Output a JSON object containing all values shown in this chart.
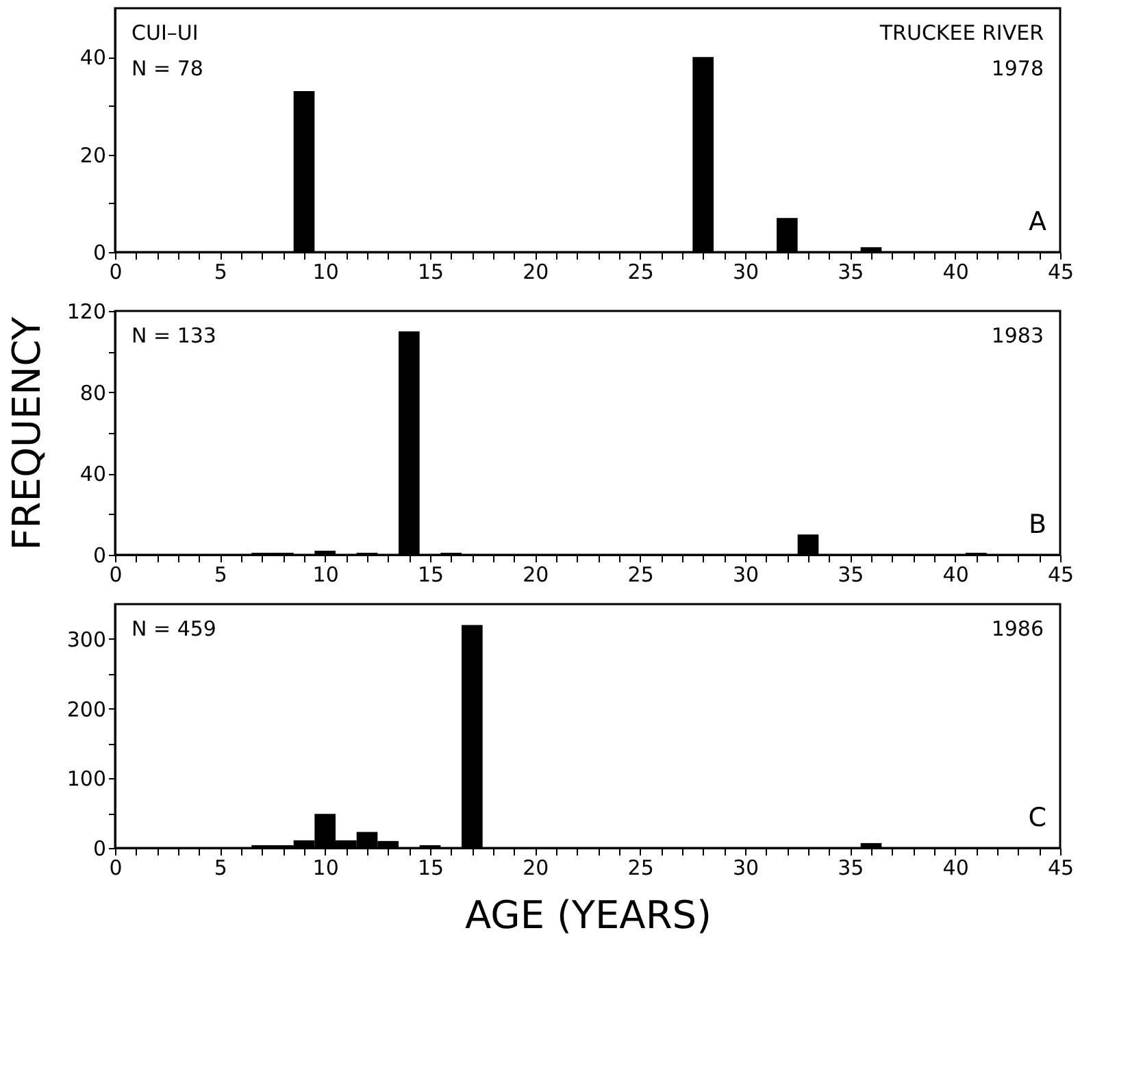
{
  "chart_data": [
    {
      "type": "bar",
      "annotations": [
        "CUI–UI",
        "TRUCKEE RIVER",
        "N = 78",
        "1978",
        "A"
      ],
      "x": [
        9,
        28,
        32,
        36
      ],
      "values": [
        33,
        40,
        7,
        1
      ],
      "color": "#000000",
      "xlim": [
        0,
        45
      ],
      "xticks": [
        0,
        {
          "value": 1,
          "label": null
        },
        {
          "value": 2,
          "label": null
        },
        {
          "value": 3,
          "label": null
        },
        {
          "value": 4,
          "label": null
        },
        5,
        {
          "value": 6,
          "label": null
        },
        {
          "value": 7,
          "label": null
        },
        {
          "value": 8,
          "label": null
        },
        {
          "value": 9,
          "label": null
        },
        10,
        {
          "value": 11,
          "label": null
        },
        {
          "value": 12,
          "label": null
        },
        {
          "value": 13,
          "label": null
        },
        {
          "value": 14,
          "label": null
        },
        15,
        {
          "value": 16,
          "label": null
        },
        {
          "value": 17,
          "label": null
        },
        {
          "value": 18,
          "label": null
        },
        {
          "value": 19,
          "label": null
        },
        20,
        {
          "value": 21,
          "label": null
        },
        {
          "value": 22,
          "label": null
        },
        {
          "value": 23,
          "label": null
        },
        {
          "value": 24,
          "label": null
        },
        25,
        {
          "value": 26,
          "label": null
        },
        {
          "value": 27,
          "label": null
        },
        {
          "value": 28,
          "label": null
        },
        {
          "value": 29,
          "label": null
        },
        30,
        {
          "value": 31,
          "label": null
        },
        {
          "value": 32,
          "label": null
        },
        {
          "value": 33,
          "label": null
        },
        {
          "value": 34,
          "label": null
        },
        35,
        {
          "value": 36,
          "label": null
        },
        {
          "value": 37,
          "label": null
        },
        {
          "value": 38,
          "label": null
        },
        {
          "value": 39,
          "label": null
        },
        40,
        {
          "value": 41,
          "label": null
        },
        {
          "value": 42,
          "label": null
        },
        {
          "value": 43,
          "label": null
        },
        {
          "value": 44,
          "label": null
        },
        45
      ],
      "ylim": [
        0,
        50
      ],
      "yticks": [
        0,
        {
          "value": 10,
          "label": null
        },
        20,
        {
          "value": 30,
          "label": null
        },
        40
      ],
      "grid": false
    },
    {
      "type": "bar",
      "annotations": [
        "N = 133",
        "1983",
        "B"
      ],
      "ylabel": "FREQUENCY",
      "x": [
        7,
        8,
        10,
        12,
        14,
        16,
        33,
        41
      ],
      "values": [
        1,
        1,
        2,
        1,
        110,
        1,
        10,
        1
      ],
      "color": "#000000",
      "xlim": [
        0,
        45
      ],
      "xticks": [
        0,
        {
          "value": 1,
          "label": null
        },
        {
          "value": 2,
          "label": null
        },
        {
          "value": 3,
          "label": null
        },
        {
          "value": 4,
          "label": null
        },
        5,
        {
          "value": 6,
          "label": null
        },
        {
          "value": 7,
          "label": null
        },
        {
          "value": 8,
          "label": null
        },
        {
          "value": 9,
          "label": null
        },
        10,
        {
          "value": 11,
          "label": null
        },
        {
          "value": 12,
          "label": null
        },
        {
          "value": 13,
          "label": null
        },
        {
          "value": 14,
          "label": null
        },
        15,
        {
          "value": 16,
          "label": null
        },
        {
          "value": 17,
          "label": null
        },
        {
          "value": 18,
          "label": null
        },
        {
          "value": 19,
          "label": null
        },
        20,
        {
          "value": 21,
          "label": null
        },
        {
          "value": 22,
          "label": null
        },
        {
          "value": 23,
          "label": null
        },
        {
          "value": 24,
          "label": null
        },
        25,
        {
          "value": 26,
          "label": null
        },
        {
          "value": 27,
          "label": null
        },
        {
          "value": 28,
          "label": null
        },
        {
          "value": 29,
          "label": null
        },
        30,
        {
          "value": 31,
          "label": null
        },
        {
          "value": 32,
          "label": null
        },
        {
          "value": 33,
          "label": null
        },
        {
          "value": 34,
          "label": null
        },
        35,
        {
          "value": 36,
          "label": null
        },
        {
          "value": 37,
          "label": null
        },
        {
          "value": 38,
          "label": null
        },
        {
          "value": 39,
          "label": null
        },
        40,
        {
          "value": 41,
          "label": null
        },
        {
          "value": 42,
          "label": null
        },
        {
          "value": 43,
          "label": null
        },
        {
          "value": 44,
          "label": null
        },
        45
      ],
      "ylim": [
        0,
        120
      ],
      "yticks": [
        0,
        {
          "value": 20,
          "label": null
        },
        40,
        {
          "value": 60,
          "label": null
        },
        80,
        {
          "value": 100,
          "label": null
        },
        120
      ],
      "grid": false
    },
    {
      "type": "bar",
      "annotations": [
        "N = 459",
        "1986",
        "C"
      ],
      "xlabel": "AGE (YEARS)",
      "x": [
        7,
        8,
        9,
        10,
        11,
        12,
        13,
        15,
        17,
        19,
        36
      ],
      "values": [
        4,
        4,
        11,
        49,
        11,
        23,
        10,
        4,
        320,
        1,
        7
      ],
      "color": "#000000",
      "xlim": [
        0,
        45
      ],
      "xticks": [
        0,
        {
          "value": 1,
          "label": null
        },
        {
          "value": 2,
          "label": null
        },
        {
          "value": 3,
          "label": null
        },
        {
          "value": 4,
          "label": null
        },
        5,
        {
          "value": 6,
          "label": null
        },
        {
          "value": 7,
          "label": null
        },
        {
          "value": 8,
          "label": null
        },
        {
          "value": 9,
          "label": null
        },
        10,
        {
          "value": 11,
          "label": null
        },
        {
          "value": 12,
          "label": null
        },
        {
          "value": 13,
          "label": null
        },
        {
          "value": 14,
          "label": null
        },
        15,
        {
          "value": 16,
          "label": null
        },
        {
          "value": 17,
          "label": null
        },
        {
          "value": 18,
          "label": null
        },
        {
          "value": 19,
          "label": null
        },
        20,
        {
          "value": 21,
          "label": null
        },
        {
          "value": 22,
          "label": null
        },
        {
          "value": 23,
          "label": null
        },
        {
          "value": 24,
          "label": null
        },
        25,
        {
          "value": 26,
          "label": null
        },
        {
          "value": 27,
          "label": null
        },
        {
          "value": 28,
          "label": null
        },
        {
          "value": 29,
          "label": null
        },
        30,
        {
          "value": 31,
          "label": null
        },
        {
          "value": 32,
          "label": null
        },
        {
          "value": 33,
          "label": null
        },
        {
          "value": 34,
          "label": null
        },
        35,
        {
          "value": 36,
          "label": null
        },
        {
          "value": 37,
          "label": null
        },
        {
          "value": 38,
          "label": null
        },
        {
          "value": 39,
          "label": null
        },
        40,
        {
          "value": 41,
          "label": null
        },
        {
          "value": 42,
          "label": null
        },
        {
          "value": 43,
          "label": null
        },
        {
          "value": 44,
          "label": null
        },
        45
      ],
      "ylim": [
        0,
        350
      ],
      "yticks": [
        0,
        {
          "value": 50,
          "label": null
        },
        100,
        {
          "value": 150,
          "label": null
        },
        200,
        {
          "value": 250,
          "label": null
        },
        300
      ],
      "grid": false
    }
  ]
}
